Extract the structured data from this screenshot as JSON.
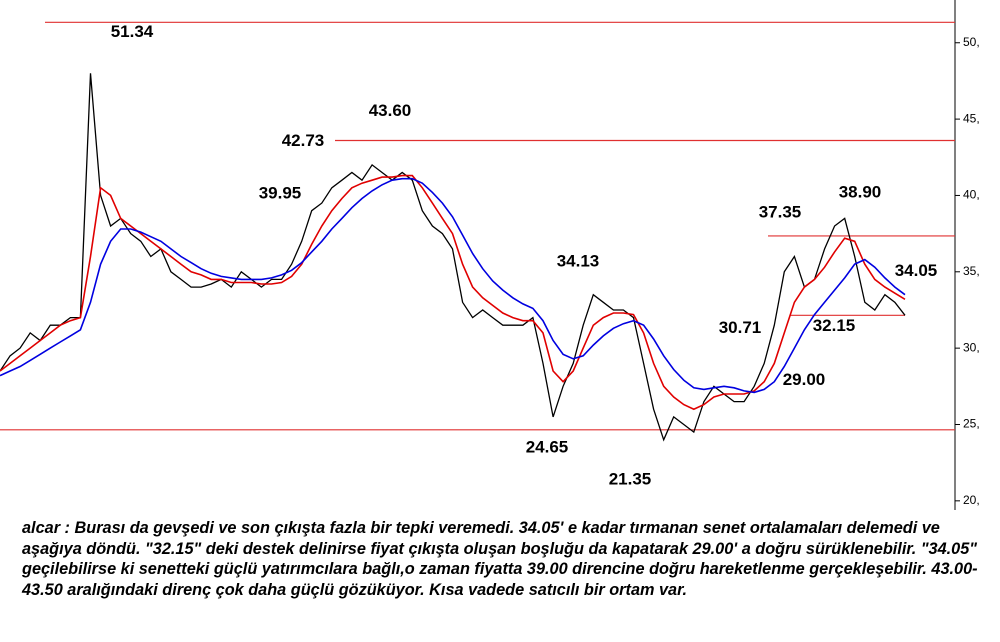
{
  "chart_data": {
    "type": "line",
    "ylim": [
      19.4,
      52.8
    ],
    "yticks": [
      {
        "value": 20,
        "label": "20,"
      },
      {
        "value": 25,
        "label": "25,"
      },
      {
        "value": 30,
        "label": "30,"
      },
      {
        "value": 35,
        "label": "35,"
      },
      {
        "value": 40,
        "label": "40,"
      },
      {
        "value": 45,
        "label": "45,"
      },
      {
        "value": 50,
        "label": "50,"
      }
    ],
    "series": [
      {
        "color": "#000000",
        "values": [
          28.5,
          29.5,
          30,
          31,
          30.5,
          31.5,
          31.5,
          32,
          32,
          48,
          40,
          38,
          38.5,
          37.5,
          37,
          36,
          36.5,
          35,
          34.5,
          34,
          34,
          34.2,
          34.5,
          34,
          35,
          34.5,
          34,
          34.5,
          34.5,
          35.5,
          37,
          39,
          39.5,
          40.5,
          41,
          41.5,
          41,
          42,
          41.5,
          41,
          41.5,
          41,
          39,
          38,
          37.5,
          36.5,
          33,
          32,
          32.5,
          32,
          31.5,
          31.5,
          31.5,
          32,
          29,
          25.5,
          27.5,
          29,
          31.5,
          33.5,
          33,
          32.5,
          32.5,
          32,
          29,
          26,
          24,
          25.5,
          25,
          24.5,
          26.5,
          27.5,
          27,
          26.5,
          26.5,
          27.5,
          29,
          31.5,
          35,
          36,
          34,
          34.5,
          36.5,
          38,
          38.5,
          36,
          33,
          32.5,
          33.5,
          33,
          32.15
        ]
      },
      {
        "color": "#e00000",
        "values": [
          28.5,
          29,
          29.5,
          30,
          30.5,
          31,
          31.5,
          31.8,
          32,
          36,
          40.5,
          40,
          38.5,
          38,
          37.5,
          37,
          36.5,
          36,
          35.5,
          35,
          34.8,
          34.5,
          34.5,
          34.3,
          34.3,
          34.3,
          34.2,
          34.2,
          34.3,
          34.7,
          35.5,
          36.8,
          38,
          39,
          39.8,
          40.5,
          40.8,
          41,
          41.2,
          41.2,
          41.3,
          41.3,
          40.5,
          39.5,
          38.5,
          37.5,
          35.5,
          34,
          33.3,
          32.8,
          32.3,
          32,
          31.8,
          31.8,
          31,
          28.5,
          27.8,
          28.5,
          30,
          31.5,
          32,
          32.3,
          32.3,
          32.2,
          31,
          29,
          27.5,
          26.8,
          26.3,
          26,
          26.3,
          26.8,
          27,
          27,
          27,
          27.2,
          27.8,
          29,
          31,
          33,
          34,
          34.5,
          35.3,
          36.3,
          37.2,
          37,
          35.5,
          34.5,
          34,
          33.6,
          33.2
        ]
      },
      {
        "color": "#0000e0",
        "values": [
          28.2,
          28.5,
          28.8,
          29.2,
          29.6,
          30,
          30.4,
          30.8,
          31.2,
          33,
          35.5,
          37,
          37.8,
          37.8,
          37.6,
          37.3,
          37,
          36.5,
          36,
          35.6,
          35.2,
          34.9,
          34.7,
          34.6,
          34.5,
          34.5,
          34.5,
          34.6,
          34.8,
          35.1,
          35.6,
          36.3,
          37,
          37.8,
          38.5,
          39.2,
          39.8,
          40.3,
          40.7,
          41,
          41.1,
          41.1,
          40.8,
          40.2,
          39.5,
          38.6,
          37.4,
          36.2,
          35.2,
          34.4,
          33.8,
          33.3,
          32.9,
          32.6,
          31.8,
          30.5,
          29.6,
          29.3,
          29.5,
          30.2,
          30.8,
          31.3,
          31.6,
          31.8,
          31.5,
          30.6,
          29.5,
          28.6,
          27.9,
          27.4,
          27.3,
          27.4,
          27.5,
          27.4,
          27.2,
          27.1,
          27.3,
          27.8,
          28.8,
          30,
          31.2,
          32.2,
          33,
          33.8,
          34.6,
          35.5,
          35.8,
          35.3,
          34.6,
          34,
          33.5
        ]
      }
    ],
    "annotations": [
      {
        "label": "51.34",
        "value": 51.34
      },
      {
        "label": "43.60",
        "value": 43.6
      },
      {
        "label": "42.73",
        "value": 42.73
      },
      {
        "label": "39.95",
        "value": 39.95
      },
      {
        "label": "34.13",
        "value": 34.13
      },
      {
        "label": "24.65",
        "value": 24.65
      },
      {
        "label": "21.35",
        "value": 21.35
      },
      {
        "label": "30.71",
        "value": 30.71
      },
      {
        "label": "29.00",
        "value": 29.0
      },
      {
        "label": "37.35",
        "value": 37.35
      },
      {
        "label": "38.90",
        "value": 38.9
      },
      {
        "label": "34.05",
        "value": 34.05
      },
      {
        "label": "32.15",
        "value": 32.15
      }
    ],
    "level_color": "#e03030",
    "caption": "alcar : Burası da gevşedi ve son çıkışta fazla bir tepki veremedi. 34.05' e kadar tırmanan senet ortalamaları delemedi ve aşağıya döndü. \"32.15\" deki destek delinirse fiyat çıkışta oluşan boşluğu da kapatarak 29.00' a doğru sürüklenebilir. \"34.05\" geçilebilirse ki senetteki güçlü yatırımcılara bağlı,o zaman fiyatta 39.00 direncine doğru hareketlenme gerçekleşebilir. 43.00-43.50 aralığındaki direnç  çok daha güçlü gözüküyor. Kısa vadede satıcılı bir ortam var."
  }
}
